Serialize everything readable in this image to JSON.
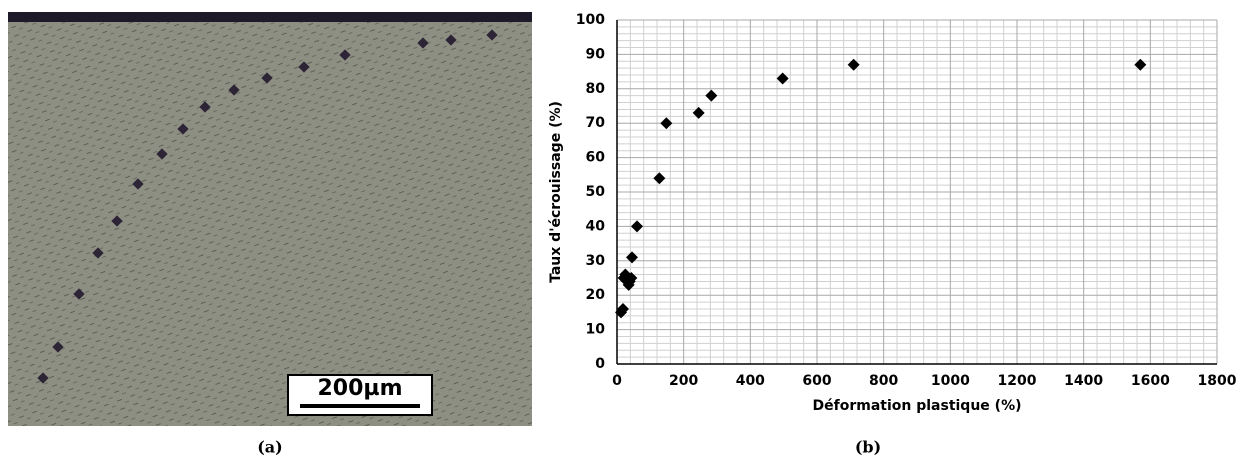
{
  "figure": {
    "panel_a": "(a)",
    "panel_b": "(b)",
    "scale_bar": "200µm"
  },
  "chart_data": {
    "type": "scatter",
    "xlabel": "Déformation plastique (%)",
    "ylabel": "Taux d'écrouissage (%)",
    "x": [
      1570,
      710,
      497,
      283,
      245,
      148,
      127,
      60,
      45,
      43,
      35,
      38,
      25,
      20,
      18,
      12
    ],
    "values": [
      87,
      87,
      83,
      78,
      73,
      70,
      54,
      40,
      31,
      25,
      23,
      24,
      26,
      25,
      16,
      15
    ],
    "color": "#000000",
    "xlim": [
      0,
      1800
    ],
    "xticks": [
      0,
      200,
      400,
      600,
      800,
      1000,
      1200,
      1400,
      1600,
      1800
    ],
    "ylim": [
      0,
      100
    ],
    "yticks": [
      0,
      10,
      20,
      30,
      40,
      50,
      60,
      70,
      80,
      90,
      100
    ],
    "grid": true,
    "minor_grid": true
  }
}
